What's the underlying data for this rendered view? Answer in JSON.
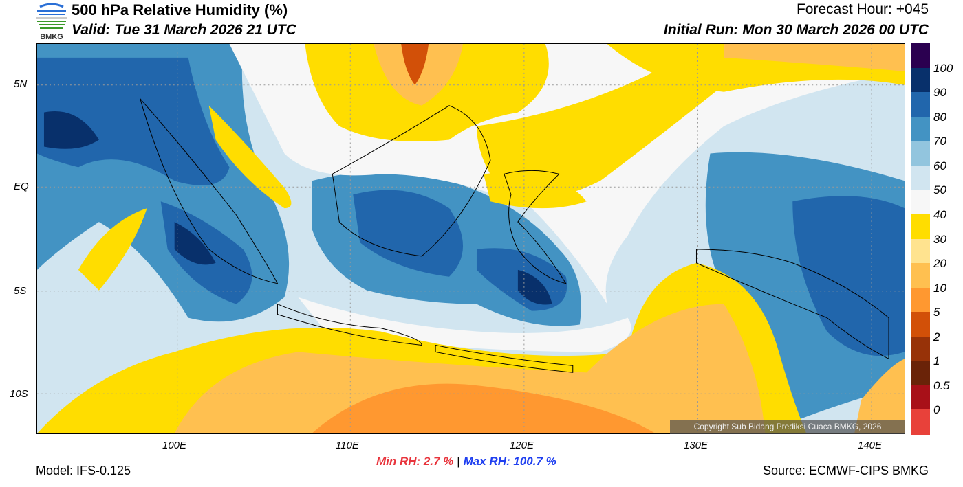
{
  "header": {
    "title": "500 hPa Relative Humidity (%)",
    "valid": "Valid: Tue 31 March 2026 21 UTC",
    "forecast_hour": "Forecast Hour: +045",
    "initial_run": "Initial Run: Mon 30 March 2026 00 UTC",
    "logo_text": "BMKG"
  },
  "footer": {
    "model": "Model: IFS-0.125",
    "source": "Source: ECMWF-CIPS BMKG",
    "min_label": "Min RH:   2.7 %",
    "separator": "|",
    "max_label": "Max RH: 100.7 %",
    "copyright": "Copyright Sub Bidang Prediksi Cuaca BMKG, 2026",
    "min_color": "#e8343c",
    "max_color": "#2040f0"
  },
  "chart_data": {
    "type": "heatmap",
    "title": "500 hPa Relative Humidity (%)",
    "x_ticks": [
      "100E",
      "110E",
      "120E",
      "130E",
      "140E"
    ],
    "x_tick_values": [
      100,
      110,
      120,
      130,
      140
    ],
    "y_ticks": [
      "5N",
      "EQ",
      "5S",
      "10S"
    ],
    "y_tick_values": [
      5,
      0,
      -5,
      -10
    ],
    "xlim": [
      92,
      142
    ],
    "ylim": [
      -12,
      7
    ],
    "colorbar": {
      "labels": [
        "100",
        "90",
        "80",
        "70",
        "60",
        "50",
        "40",
        "30",
        "20",
        "10",
        "5",
        "2",
        "1",
        "0.5",
        "0"
      ],
      "colors": [
        "#2b0050",
        "#08306b",
        "#2166ac",
        "#4393c3",
        "#92c5de",
        "#d1e5f0",
        "#f7f7f7",
        "#ffdd00",
        "#ffe38f",
        "#ffc050",
        "#ff9830",
        "#d25008",
        "#973208",
        "#6a2308",
        "#a81018",
        "#e8413a"
      ]
    },
    "min_rh": 2.7,
    "max_rh": 100.7
  }
}
